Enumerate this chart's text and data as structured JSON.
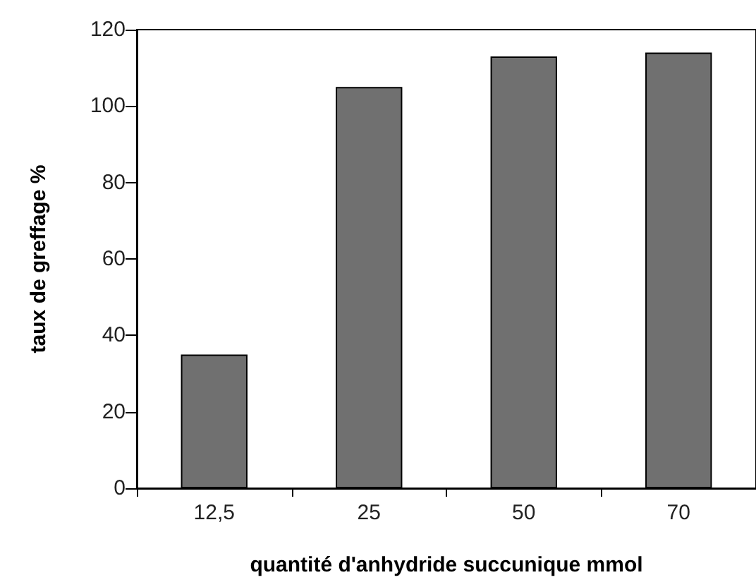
{
  "chart_data": {
    "type": "bar",
    "xlabel": "quantité d'anhydride succunique mmol",
    "ylabel": "taux de greffage %",
    "categories": [
      "12,5",
      "25",
      "50",
      "70"
    ],
    "values": [
      35,
      105,
      113,
      114
    ],
    "color": "#707070",
    "ylim": [
      0,
      120
    ],
    "yticks": [
      0,
      20,
      40,
      60,
      80,
      100,
      120
    ],
    "grid": false
  }
}
